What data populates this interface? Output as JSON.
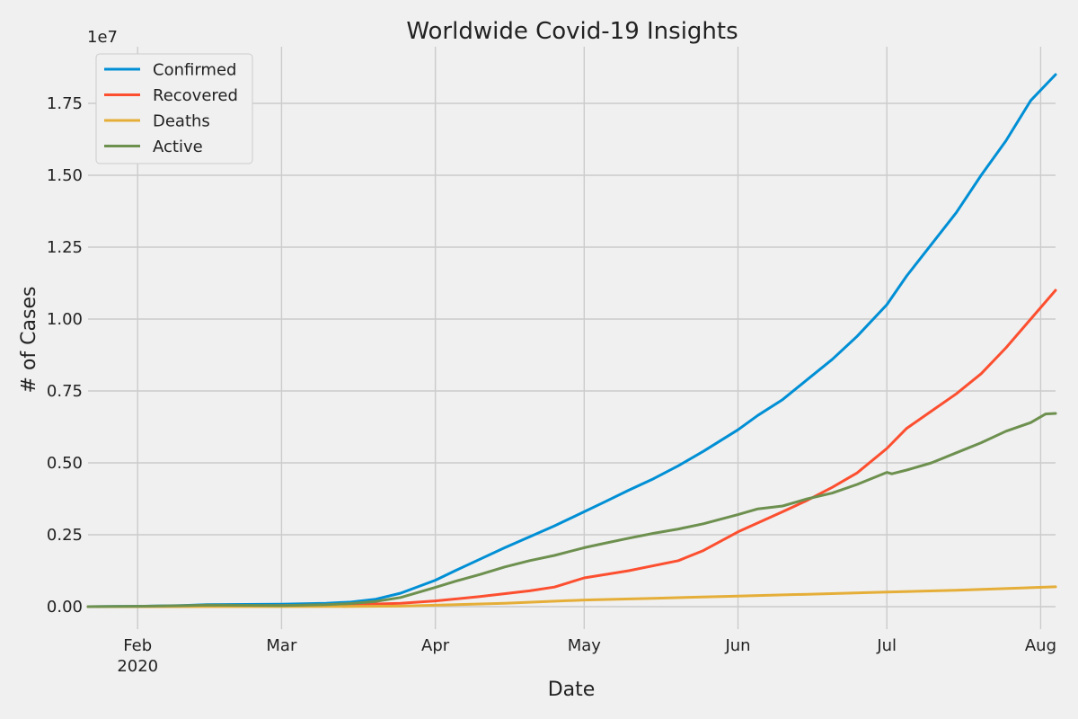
{
  "chart_data": {
    "type": "line",
    "title": "Worldwide Covid-19 Insights",
    "xlabel": "Date",
    "ylabel": "# of Cases",
    "y_offset_label": "1e7",
    "ylim": [
      -0.05,
      1.845
    ],
    "y_scale_factor": 10000000,
    "xlim": [
      "2020-01-22",
      "2020-08-04"
    ],
    "grid": true,
    "legend_position": "top-left",
    "x_ticks": [
      {
        "date": "2020-02-01",
        "label": "Feb",
        "sublabel": "2020"
      },
      {
        "date": "2020-03-01",
        "label": "Mar",
        "sublabel": ""
      },
      {
        "date": "2020-04-01",
        "label": "Apr",
        "sublabel": ""
      },
      {
        "date": "2020-05-01",
        "label": "May",
        "sublabel": ""
      },
      {
        "date": "2020-06-01",
        "label": "Jun",
        "sublabel": ""
      },
      {
        "date": "2020-07-01",
        "label": "Jul",
        "sublabel": ""
      },
      {
        "date": "2020-08-01",
        "label": "Aug",
        "sublabel": ""
      }
    ],
    "y_ticks": [
      {
        "value": 0.0,
        "label": "0.00"
      },
      {
        "value": 0.25,
        "label": "0.25"
      },
      {
        "value": 0.5,
        "label": "0.50"
      },
      {
        "value": 0.75,
        "label": "0.75"
      },
      {
        "value": 1.0,
        "label": "1.00"
      },
      {
        "value": 1.25,
        "label": "1.25"
      },
      {
        "value": 1.5,
        "label": "1.50"
      },
      {
        "value": 1.75,
        "label": "1.75"
      }
    ],
    "series": [
      {
        "name": "Confirmed",
        "color": "#008fd5",
        "points": [
          [
            "2020-01-22",
            0.0
          ],
          [
            "2020-02-01",
            0.0012
          ],
          [
            "2020-02-10",
            0.004
          ],
          [
            "2020-02-15",
            0.0068
          ],
          [
            "2020-03-01",
            0.0088
          ],
          [
            "2020-03-10",
            0.0118
          ],
          [
            "2020-03-15",
            0.016
          ],
          [
            "2020-03-20",
            0.026
          ],
          [
            "2020-03-25",
            0.047
          ],
          [
            "2020-04-01",
            0.092
          ],
          [
            "2020-04-05",
            0.125
          ],
          [
            "2020-04-10",
            0.165
          ],
          [
            "2020-04-15",
            0.205
          ],
          [
            "2020-04-20",
            0.243
          ],
          [
            "2020-04-25",
            0.281
          ],
          [
            "2020-05-01",
            0.33
          ],
          [
            "2020-05-05",
            0.363
          ],
          [
            "2020-05-10",
            0.405
          ],
          [
            "2020-05-15",
            0.445
          ],
          [
            "2020-05-20",
            0.49
          ],
          [
            "2020-05-25",
            0.54
          ],
          [
            "2020-06-01",
            0.615
          ],
          [
            "2020-06-05",
            0.665
          ],
          [
            "2020-06-10",
            0.72
          ],
          [
            "2020-06-15",
            0.79
          ],
          [
            "2020-06-20",
            0.86
          ],
          [
            "2020-06-25",
            0.94
          ],
          [
            "2020-07-01",
            1.05
          ],
          [
            "2020-07-05",
            1.15
          ],
          [
            "2020-07-10",
            1.26
          ],
          [
            "2020-07-15",
            1.37
          ],
          [
            "2020-07-20",
            1.5
          ],
          [
            "2020-07-25",
            1.62
          ],
          [
            "2020-07-30",
            1.76
          ],
          [
            "2020-08-04",
            1.85
          ]
        ]
      },
      {
        "name": "Recovered",
        "color": "#fc4f30",
        "points": [
          [
            "2020-01-22",
            0.0
          ],
          [
            "2020-02-01",
            0.0
          ],
          [
            "2020-02-15",
            0.0015
          ],
          [
            "2020-03-01",
            0.004
          ],
          [
            "2020-03-15",
            0.0065
          ],
          [
            "2020-03-25",
            0.012
          ],
          [
            "2020-04-01",
            0.02
          ],
          [
            "2020-04-10",
            0.035
          ],
          [
            "2020-04-20",
            0.055
          ],
          [
            "2020-04-25",
            0.068
          ],
          [
            "2020-05-01",
            0.1
          ],
          [
            "2020-05-10",
            0.125
          ],
          [
            "2020-05-20",
            0.16
          ],
          [
            "2020-05-25",
            0.195
          ],
          [
            "2020-06-01",
            0.26
          ],
          [
            "2020-06-10",
            0.33
          ],
          [
            "2020-06-15",
            0.37
          ],
          [
            "2020-06-20",
            0.415
          ],
          [
            "2020-06-25",
            0.465
          ],
          [
            "2020-07-01",
            0.55
          ],
          [
            "2020-07-05",
            0.62
          ],
          [
            "2020-07-10",
            0.68
          ],
          [
            "2020-07-15",
            0.74
          ],
          [
            "2020-07-20",
            0.81
          ],
          [
            "2020-07-25",
            0.9
          ],
          [
            "2020-07-30",
            1.0
          ],
          [
            "2020-08-04",
            1.1
          ]
        ]
      },
      {
        "name": "Deaths",
        "color": "#e5ae38",
        "points": [
          [
            "2020-01-22",
            0.0
          ],
          [
            "2020-03-01",
            0.0003
          ],
          [
            "2020-03-15",
            0.0006
          ],
          [
            "2020-03-25",
            0.002
          ],
          [
            "2020-04-01",
            0.005
          ],
          [
            "2020-04-15",
            0.012
          ],
          [
            "2020-05-01",
            0.023
          ],
          [
            "2020-05-15",
            0.029
          ],
          [
            "2020-06-01",
            0.037
          ],
          [
            "2020-06-15",
            0.043
          ],
          [
            "2020-07-01",
            0.051
          ],
          [
            "2020-07-15",
            0.057
          ],
          [
            "2020-08-04",
            0.069
          ]
        ]
      },
      {
        "name": "Active",
        "color": "#6d904f",
        "points": [
          [
            "2020-01-22",
            0.0
          ],
          [
            "2020-02-01",
            0.0012
          ],
          [
            "2020-02-10",
            0.0035
          ],
          [
            "2020-02-15",
            0.0055
          ],
          [
            "2020-03-01",
            0.004
          ],
          [
            "2020-03-10",
            0.007
          ],
          [
            "2020-03-15",
            0.011
          ],
          [
            "2020-03-20",
            0.018
          ],
          [
            "2020-03-25",
            0.032
          ],
          [
            "2020-04-01",
            0.067
          ],
          [
            "2020-04-05",
            0.088
          ],
          [
            "2020-04-10",
            0.112
          ],
          [
            "2020-04-15",
            0.138
          ],
          [
            "2020-04-20",
            0.16
          ],
          [
            "2020-04-25",
            0.178
          ],
          [
            "2020-05-01",
            0.205
          ],
          [
            "2020-05-05",
            0.22
          ],
          [
            "2020-05-10",
            0.238
          ],
          [
            "2020-05-15",
            0.255
          ],
          [
            "2020-05-20",
            0.27
          ],
          [
            "2020-05-25",
            0.288
          ],
          [
            "2020-06-01",
            0.32
          ],
          [
            "2020-06-05",
            0.34
          ],
          [
            "2020-06-10",
            0.35
          ],
          [
            "2020-06-15",
            0.375
          ],
          [
            "2020-06-20",
            0.395
          ],
          [
            "2020-06-25",
            0.425
          ],
          [
            "2020-07-01",
            0.467
          ],
          [
            "2020-07-02",
            0.462
          ],
          [
            "2020-07-05",
            0.475
          ],
          [
            "2020-07-10",
            0.5
          ],
          [
            "2020-07-15",
            0.535
          ],
          [
            "2020-07-20",
            0.57
          ],
          [
            "2020-07-25",
            0.61
          ],
          [
            "2020-07-30",
            0.64
          ],
          [
            "2020-08-02",
            0.67
          ],
          [
            "2020-08-04",
            0.672
          ]
        ]
      }
    ]
  }
}
